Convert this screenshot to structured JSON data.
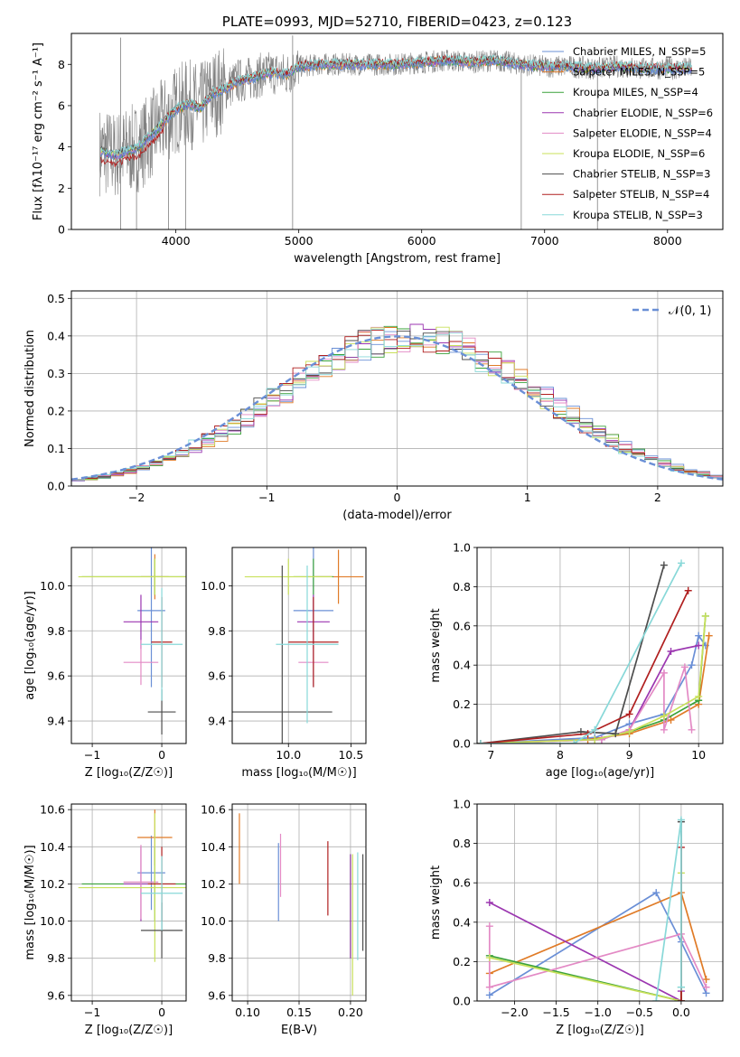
{
  "colors": [
    "#6a8fd6",
    "#e07b27",
    "#3aa13a",
    "#9b36b0",
    "#e38ac5",
    "#c8e05a",
    "#4d4d4d",
    "#b01f1f",
    "#88d8d8"
  ],
  "chart_data": [
    {
      "id": "spectrum",
      "type": "line",
      "title": "PLATE=0993, MJD=52710, FIBERID=0423, z=0.123",
      "xlabel": "wavelength [Angstrom, rest frame]",
      "ylabel": "Flux [fλ10⁻¹⁷ erg cm⁻² s⁻¹ A⁻¹]",
      "xlim": [
        3150,
        8450
      ],
      "ylim": [
        0,
        9.5
      ],
      "xticks": [
        "4000",
        "5000",
        "6000",
        "7000",
        "8000"
      ],
      "yticks": [
        "0",
        "2",
        "4",
        "6",
        "8"
      ],
      "legend_position": "top-right",
      "legend": [
        "Chabrier MILES, N_SSP=5",
        "Salpeter MILES, N_SSP=5",
        "Kroupa MILES, N_SSP=4",
        "Chabrier ELODIE, N_SSP=6",
        "Salpeter ELODIE, N_SSP=4",
        "Kroupa ELODIE, N_SSP=6",
        "Chabrier STELIB, N_SSP=3",
        "Salpeter STELIB, N_SSP=4",
        "Kroupa STELIB, N_SSP=3"
      ],
      "model_x": [
        3400,
        3500,
        3600,
        3700,
        3800,
        3900,
        4000,
        4100,
        4200,
        4300,
        4400,
        4500,
        4600,
        4700,
        4800,
        4900,
        5000,
        5200,
        5400,
        5600,
        5800,
        6000,
        6200,
        6400,
        6600,
        6800,
        7000,
        7200,
        7400,
        7600,
        7800,
        8000,
        8200
      ],
      "model_y": [
        3.8,
        3.6,
        3.8,
        4.0,
        4.6,
        5.2,
        5.8,
        6.1,
        5.9,
        6.6,
        6.8,
        7.2,
        7.3,
        7.5,
        7.6,
        7.5,
        7.9,
        8.0,
        8.0,
        8.0,
        8.0,
        8.1,
        8.2,
        8.1,
        8.2,
        8.0,
        7.9,
        7.9,
        7.8,
        7.9,
        7.8,
        7.8,
        7.8
      ]
    },
    {
      "id": "residuals",
      "type": "step",
      "xlabel": "(data-model)/error",
      "ylabel": "Normed distribution",
      "xlim": [
        -2.5,
        2.5
      ],
      "ylim": [
        0,
        0.52
      ],
      "xticks": [
        "−2",
        "−1",
        "0",
        "1",
        "2"
      ],
      "yticks": [
        "0.0",
        "0.1",
        "0.2",
        "0.3",
        "0.4",
        "0.5"
      ],
      "legend": [
        "𝒩(0, 1)"
      ],
      "gauss": {
        "mu": 0,
        "sigma": 1
      }
    },
    {
      "id": "age-vs-Z",
      "type": "errorbar",
      "xlabel": "Z [log₁₀(Z/Z☉)]",
      "ylabel": "age  [log₁₀(age/yr)]",
      "xlim": [
        -1.3,
        0.35
      ],
      "ylim": [
        9.3,
        10.17
      ],
      "xticks": [
        "−1",
        "0"
      ],
      "yticks": [
        "9.4",
        "9.6",
        "9.8",
        "10.0"
      ],
      "points": [
        {
          "x": -0.15,
          "xerr": 0.2,
          "y": 9.89,
          "yerr": 0.34
        },
        {
          "x": -0.1,
          "xerr": 0.2,
          "y": 10.04,
          "yerr": 0.1
        },
        {
          "x": -0.1,
          "xerr": 1.05,
          "y": 10.04,
          "yerr": 0.08
        },
        {
          "x": -0.3,
          "xerr": 0.25,
          "y": 9.84,
          "yerr": 0.12
        },
        {
          "x": -0.3,
          "xerr": 0.25,
          "y": 9.66,
          "yerr": 0.1
        },
        {
          "x": -0.1,
          "xerr": 1.1,
          "y": 10.04,
          "yerr": 0.08
        },
        {
          "x": 0.0,
          "xerr": 0.2,
          "y": 9.44,
          "yerr": 0.1
        },
        {
          "x": 0.0,
          "xerr": 0.15,
          "y": 9.75,
          "yerr": 0.2
        },
        {
          "x": 0.0,
          "xerr": 0.3,
          "y": 9.74,
          "yerr": 0.25
        }
      ]
    },
    {
      "id": "age-vs-mass",
      "type": "errorbar",
      "xlabel": "mass [log₁₀(M/M☉)]",
      "xlim": [
        9.55,
        10.62
      ],
      "ylim": [
        9.3,
        10.17
      ],
      "xticks": [
        "10.0",
        "10.5"
      ],
      "yticks": [
        "9.4",
        "9.6",
        "9.8",
        "10.0"
      ],
      "points": [
        {
          "x": 10.2,
          "xerr": 0.16,
          "y": 9.89,
          "yerr": 0.34
        },
        {
          "x": 10.4,
          "xerr": 0.2,
          "y": 10.04,
          "yerr": 0.12
        },
        {
          "x": 10.2,
          "xerr": 0.16,
          "y": 10.04,
          "yerr": 0.08
        },
        {
          "x": 10.2,
          "xerr": 0.13,
          "y": 9.84,
          "yerr": 0.12
        },
        {
          "x": 10.2,
          "xerr": 0.12,
          "y": 9.66,
          "yerr": 0.1
        },
        {
          "x": 10.0,
          "xerr": 0.35,
          "y": 10.04,
          "yerr": 0.08
        },
        {
          "x": 9.95,
          "xerr": 0.4,
          "y": 9.44,
          "yerr": 0.65
        },
        {
          "x": 10.2,
          "xerr": 0.2,
          "y": 9.75,
          "yerr": 0.2
        },
        {
          "x": 10.15,
          "xerr": 0.25,
          "y": 9.74,
          "yerr": 0.35
        }
      ]
    },
    {
      "id": "weight-vs-age",
      "type": "line",
      "xlabel": "age  [log₁₀(age/yr)]",
      "ylabel": "mass weight",
      "xlim": [
        6.8,
        10.35
      ],
      "ylim": [
        0,
        1.0
      ],
      "xticks": [
        "7",
        "8",
        "9",
        "10"
      ],
      "yticks": [
        "0.0",
        "0.2",
        "0.4",
        "0.6",
        "0.8",
        "1.0"
      ],
      "series": [
        {
          "x": [
            6.85,
            8.5,
            9.0,
            9.5,
            9.9,
            10.0,
            10.1
          ],
          "y": [
            0.0,
            0.03,
            0.1,
            0.15,
            0.4,
            0.55,
            0.5
          ]
        },
        {
          "x": [
            6.85,
            8.4,
            9.0,
            9.6,
            10.0,
            10.15
          ],
          "y": [
            0.0,
            0.02,
            0.05,
            0.12,
            0.2,
            0.55
          ]
        },
        {
          "x": [
            6.85,
            8.5,
            9.0,
            9.5,
            10.0,
            10.1
          ],
          "y": [
            0.0,
            0.02,
            0.06,
            0.12,
            0.22,
            0.65
          ]
        },
        {
          "x": [
            6.85,
            8.6,
            9.0,
            9.6,
            10.0
          ],
          "y": [
            0.0,
            0.02,
            0.07,
            0.47,
            0.5
          ]
        },
        {
          "x": [
            6.85,
            8.6,
            9.0,
            9.5,
            9.5,
            9.8,
            9.9
          ],
          "y": [
            0.0,
            0.02,
            0.07,
            0.36,
            0.07,
            0.39,
            0.07
          ]
        },
        {
          "x": [
            6.85,
            8.5,
            9.0,
            9.5,
            10.0,
            10.1
          ],
          "y": [
            0.0,
            0.02,
            0.06,
            0.14,
            0.24,
            0.65
          ]
        },
        {
          "x": [
            6.85,
            8.3,
            8.8,
            9.5
          ],
          "y": [
            0.0,
            0.06,
            0.05,
            0.91
          ]
        },
        {
          "x": [
            6.85,
            8.4,
            9.0,
            9.85
          ],
          "y": [
            0.0,
            0.05,
            0.15,
            0.78
          ]
        },
        {
          "x": [
            6.85,
            8.2,
            8.5,
            9.75
          ],
          "y": [
            0.0,
            0.0,
            0.07,
            0.92
          ]
        }
      ]
    },
    {
      "id": "mass-vs-Z",
      "type": "errorbar",
      "xlabel": "Z [log₁₀(Z/Z☉)]",
      "ylabel": "mass [log₁₀(M/M☉)]",
      "xlim": [
        -1.3,
        0.35
      ],
      "ylim": [
        9.57,
        10.63
      ],
      "xticks": [
        "−1",
        "0"
      ],
      "yticks": [
        "9.6",
        "9.8",
        "10.0",
        "10.2",
        "10.4",
        "10.6"
      ],
      "points": [
        {
          "x": -0.15,
          "xerr": 0.2,
          "y": 10.26,
          "yerr": 0.2
        },
        {
          "x": -0.1,
          "xerr": 0.25,
          "y": 10.45,
          "yerr": 0.15
        },
        {
          "x": -0.1,
          "xerr": 1.05,
          "y": 10.2,
          "yerr": 0.2
        },
        {
          "x": -0.3,
          "xerr": 0.25,
          "y": 10.2,
          "yerr": 0.2
        },
        {
          "x": -0.3,
          "xerr": 0.25,
          "y": 10.21,
          "yerr": 0.2
        },
        {
          "x": -0.1,
          "xerr": 1.1,
          "y": 10.18,
          "yerr": 0.4
        },
        {
          "x": 0.0,
          "xerr": 0.3,
          "y": 9.95,
          "yerr": 0.15
        },
        {
          "x": 0.0,
          "xerr": 0.2,
          "y": 10.2,
          "yerr": 0.2
        },
        {
          "x": 0.0,
          "xerr": 0.3,
          "y": 10.15,
          "yerr": 0.2
        }
      ]
    },
    {
      "id": "mass-vs-EBV",
      "type": "errorbar",
      "xlabel": "E(B-V)",
      "xlim": [
        0.085,
        0.215
      ],
      "ylim": [
        9.57,
        10.63
      ],
      "xticks": [
        "0.10",
        "0.15",
        "0.20"
      ],
      "yticks": [
        "9.6",
        "9.8",
        "10.0",
        "10.2",
        "10.4",
        "10.6"
      ],
      "points": [
        {
          "x": 0.13,
          "y": 10.21,
          "yerr": 0.21
        },
        {
          "x": 0.092,
          "y": 10.39,
          "yerr": 0.19
        },
        {
          "x": 0.2,
          "y": 10.08,
          "yerr": 0.28
        },
        {
          "x": 0.2,
          "y": 10.08,
          "yerr": 0.28
        },
        {
          "x": 0.132,
          "y": 10.3,
          "yerr": 0.17
        },
        {
          "x": 0.202,
          "y": 9.98,
          "yerr": 0.38
        },
        {
          "x": 0.212,
          "y": 10.1,
          "yerr": 0.26
        },
        {
          "x": 0.178,
          "y": 10.23,
          "yerr": 0.2
        },
        {
          "x": 0.207,
          "y": 10.08,
          "yerr": 0.29
        }
      ]
    },
    {
      "id": "weight-vs-Z",
      "type": "line",
      "xlabel": "Z [log₁₀(Z/Z☉)]",
      "ylabel": "mass weight",
      "xlim": [
        -2.45,
        0.5
      ],
      "ylim": [
        0,
        1.0
      ],
      "xticks": [
        "−2.0",
        "−1.5",
        "−1.0",
        "−0.5",
        "0.0"
      ],
      "yticks": [
        "0.0",
        "0.2",
        "0.4",
        "0.6",
        "0.8",
        "1.0"
      ],
      "series": [
        {
          "x": [
            -2.3,
            -0.3,
            0.0,
            0.3
          ],
          "y": [
            0.03,
            0.55,
            0.3,
            0.04
          ]
        },
        {
          "x": [
            -2.3,
            0.0,
            0.3
          ],
          "y": [
            0.14,
            0.55,
            0.11
          ]
        },
        {
          "x": [
            -2.3,
            0.0,
            0.0
          ],
          "y": [
            0.23,
            0.0,
            0.07
          ]
        },
        {
          "x": [
            -2.3,
            0.0,
            0.0
          ],
          "y": [
            0.5,
            0.0,
            0.05
          ]
        },
        {
          "x": [
            -2.3,
            -2.3,
            0.0,
            0.3
          ],
          "y": [
            0.38,
            0.07,
            0.34,
            0.07
          ]
        },
        {
          "x": [
            -2.3,
            0.0,
            0.0
          ],
          "y": [
            0.22,
            0.0,
            0.65
          ]
        },
        {
          "x": [
            0.0,
            0.0
          ],
          "y": [
            0.0,
            0.91
          ]
        },
        {
          "x": [
            0.0,
            0.0
          ],
          "y": [
            0.0,
            0.78
          ]
        },
        {
          "x": [
            -0.3,
            0.0,
            0.0
          ],
          "y": [
            0.0,
            0.92,
            0.07
          ]
        }
      ]
    }
  ]
}
